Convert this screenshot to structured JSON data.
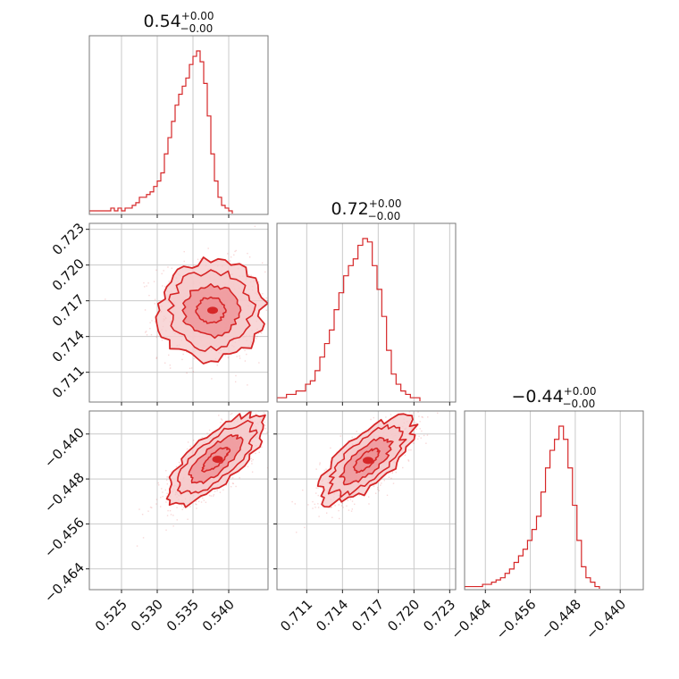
{
  "colors": {
    "accent": "#d62728",
    "fill_light": "#f6c9cb",
    "fill_mid": "#ee8f93",
    "grid": "#c9c9c9",
    "frame": "#7a7a7a"
  },
  "chart_data": {
    "type": "corner",
    "parameters": [
      {
        "title": "0.54",
        "upper": "+0.00",
        "lower": "−0.00",
        "ticks": [
          "0.525",
          "0.530",
          "0.535",
          "0.540"
        ],
        "range": [
          0.5205,
          0.5455
        ],
        "tick_values": [
          0.525,
          0.53,
          0.535,
          0.54
        ],
        "hist": {
          "bin_edges_start": 0.5205,
          "bin_width": 0.0005,
          "counts": [
            1,
            1,
            1,
            1,
            1,
            1,
            2,
            1,
            2,
            1,
            2,
            2,
            3,
            4,
            6,
            6,
            7,
            8,
            10,
            12,
            15,
            22,
            28,
            34,
            40,
            44,
            47,
            50,
            55,
            58,
            60,
            56,
            48,
            36,
            22,
            12,
            6,
            3,
            2,
            1
          ]
        }
      },
      {
        "title": "0.72",
        "upper": "+0.00",
        "lower": "−0.00",
        "ticks": [
          "0.711",
          "0.714",
          "0.717",
          "0.720",
          "0.723"
        ],
        "range": [
          0.7085,
          0.7235
        ],
        "tick_values": [
          0.711,
          0.714,
          0.717,
          0.72,
          0.723
        ],
        "hist": {
          "bin_edges_start": 0.7085,
          "bin_width": 0.0004,
          "counts": [
            1,
            1,
            2,
            2,
            3,
            3,
            5,
            6,
            9,
            13,
            17,
            21,
            27,
            32,
            37,
            40,
            42,
            46,
            48,
            47,
            40,
            33,
            25,
            15,
            8,
            5,
            3,
            2,
            1,
            1
          ]
        }
      },
      {
        "title": "−0.44",
        "upper": "+0.00",
        "lower": "−0.00",
        "ticks": [
          "−0.464",
          "−0.456",
          "−0.448",
          "−0.440"
        ],
        "range": [
          -0.4677,
          -0.4359
        ],
        "tick_values": [
          -0.464,
          -0.456,
          -0.448,
          -0.44
        ],
        "hist": {
          "bin_edges_start": -0.4677,
          "bin_width": 0.0008,
          "counts": [
            1,
            1,
            1,
            1,
            2,
            2,
            3,
            4,
            5,
            7,
            9,
            12,
            15,
            18,
            22,
            27,
            33,
            44,
            55,
            63,
            68,
            74,
            68,
            55,
            38,
            22,
            10,
            5,
            3,
            1
          ]
        }
      }
    ],
    "pairs": [
      {
        "row": 1,
        "col": 0,
        "x_center": 0.5375,
        "y_center": 0.7162,
        "x_spread": 0.0032,
        "y_spread": 0.0018,
        "correlation": 0.0,
        "contours_sigma": [
          0.6,
          1.2,
          1.8,
          2.3
        ]
      },
      {
        "row": 2,
        "col": 0,
        "x_center": 0.5382,
        "y_center": -0.4445,
        "x_spread": 0.003,
        "y_spread": 0.0035,
        "correlation": 0.75,
        "contours_sigma": [
          0.6,
          1.2,
          1.8,
          2.3
        ]
      },
      {
        "row": 2,
        "col": 1,
        "x_center": 0.716,
        "y_center": -0.4447,
        "x_spread": 0.0017,
        "y_spread": 0.0033,
        "correlation": 0.7,
        "contours_sigma": [
          0.6,
          1.2,
          1.8,
          2.3
        ]
      }
    ]
  }
}
